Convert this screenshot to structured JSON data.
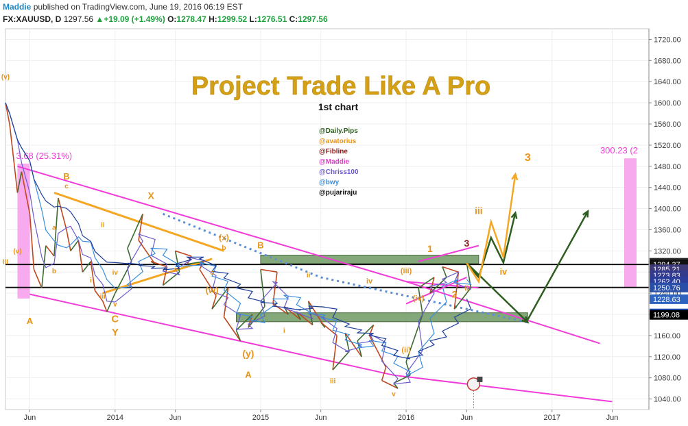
{
  "header": {
    "author": "Maddie",
    "published_text": "published on TradingView.com, June 19, 2016 06:19 EST",
    "symbol": "FX:XAUUSD, D",
    "last": "1297.56",
    "change": "+19.09 (+1.49%)",
    "open_label": "O:",
    "open": "1278.47",
    "high_label": "H:",
    "high": "1299.52",
    "low_label": "L:",
    "low": "1276.51",
    "close_label": "C:",
    "close": "1297.56"
  },
  "colors": {
    "magenta": "#f23cd8",
    "orange": "#f5a623",
    "wave_orange": "#e8951a",
    "dark_green": "#2e5e1f",
    "green_zone": "#6f9a62",
    "blue_dots": "#5b8ed6",
    "pink_box": "#f7a1ec"
  },
  "chart_data": {
    "type": "line",
    "title": "Project Trade Like A Pro",
    "subtitle": "1st chart",
    "contributors": [
      {
        "name": "@Daily.Pips",
        "color": "#2e5e1f"
      },
      {
        "name": "@avatorius",
        "color": "#e8951a"
      },
      {
        "name": "@Fibline",
        "color": "#8b1a1a"
      },
      {
        "name": "@Maddie",
        "color": "#e03cc8"
      },
      {
        "name": "@Chriss100",
        "color": "#6a5acd"
      },
      {
        "name": "@bwy",
        "color": "#3a8dde"
      },
      {
        "name": "@pujariraju",
        "color": "#111111"
      }
    ],
    "y_axis": {
      "ylim": [
        1020,
        1740
      ],
      "ticks": [
        1040,
        1080,
        1120,
        1160,
        1200,
        1240,
        1280,
        1320,
        1360,
        1400,
        1440,
        1480,
        1520,
        1560,
        1600,
        1640,
        1680,
        1720
      ],
      "tick_labels": [
        "1040.00",
        "1080.00",
        "1120.00",
        "1160.00",
        "1200.00",
        "1240.00",
        "1280.00",
        "1320.00",
        "1360.00",
        "1400.00",
        "1440.00",
        "1480.00",
        "1520.00",
        "1560.00",
        "1600.00",
        "1640.00",
        "1680.00",
        "1720.00"
      ]
    },
    "price_labels": [
      {
        "value": 1297.56,
        "text": "1297.56",
        "color": "#2a2a2a"
      },
      {
        "value": 1294.37,
        "text": "1294.37",
        "color": "#111111"
      },
      {
        "value": 1285.21,
        "text": "1285.21",
        "color": "#3f3a7a"
      },
      {
        "value": 1273.83,
        "text": "1273.83",
        "color": "#343a8c"
      },
      {
        "value": 1262.4,
        "text": "1262.40",
        "color": "#2c3e9a"
      },
      {
        "value": 1250.76,
        "text": "1250.76",
        "color": "#2a4fa8"
      },
      {
        "value": 1228.63,
        "text": "1228.63",
        "color": "#2f63c0"
      },
      {
        "value": 1201.71,
        "text": "1201.71",
        "color": "#1e4fb0"
      },
      {
        "value": 1199.08,
        "text": "1199.08",
        "color": "#000000"
      }
    ],
    "x_axis": {
      "tick_labels": [
        "Jun",
        "2014",
        "Jun",
        "2015",
        "Jun",
        "2016",
        "Jun",
        "2017",
        "Jun"
      ],
      "dates": [
        "2013-06",
        "2014-01",
        "2014-06",
        "2015-01",
        "2015-06",
        "2016-01",
        "2016-06",
        "2017-01",
        "2017-06"
      ]
    },
    "series": [
      {
        "name": "XAUUSD",
        "x": [
          "2013-04",
          "2013-04",
          "2013-05",
          "2013-05",
          "2013-06",
          "2013-06",
          "2013-07",
          "2013-07",
          "2013-08",
          "2013-08",
          "2013-09",
          "2013-09",
          "2013-10",
          "2013-10",
          "2013-11",
          "2013-11",
          "2013-12",
          "2013-12",
          "2014-01",
          "2014-02",
          "2014-02",
          "2014-03",
          "2014-03",
          "2014-04",
          "2014-04",
          "2014-05",
          "2014-05",
          "2014-06",
          "2014-06",
          "2014-07",
          "2014-07",
          "2014-08",
          "2014-08",
          "2014-09",
          "2014-09",
          "2014-10",
          "2014-10",
          "2014-11",
          "2014-11",
          "2014-12",
          "2014-12",
          "2015-01",
          "2015-01",
          "2015-02",
          "2015-02",
          "2015-03",
          "2015-03",
          "2015-04",
          "2015-04",
          "2015-05",
          "2015-05",
          "2015-06",
          "2015-06",
          "2015-07",
          "2015-07",
          "2015-08",
          "2015-08",
          "2015-09",
          "2015-09",
          "2015-10",
          "2015-10",
          "2015-11",
          "2015-11",
          "2015-12",
          "2015-12",
          "2016-01",
          "2016-01",
          "2016-02",
          "2016-02",
          "2016-03",
          "2016-03",
          "2016-04",
          "2016-04",
          "2016-05",
          "2016-05",
          "2016-06",
          "2016-06"
        ],
        "y": [
          1600,
          1560,
          1430,
          1470,
          1390,
          1285,
          1250,
          1330,
          1310,
          1420,
          1360,
          1320,
          1340,
          1280,
          1300,
          1245,
          1225,
          1205,
          1240,
          1300,
          1325,
          1390,
          1340,
          1295,
          1300,
          1290,
          1255,
          1280,
          1320,
          1310,
          1295,
          1300,
          1285,
          1235,
          1210,
          1250,
          1195,
          1150,
          1170,
          1200,
          1175,
          1215,
          1285,
          1280,
          1220,
          1200,
          1215,
          1190,
          1205,
          1180,
          1225,
          1175,
          1185,
          1160,
          1095,
          1130,
          1165,
          1120,
          1150,
          1180,
          1160,
          1100,
          1075,
          1060,
          1070,
          1085,
          1110,
          1200,
          1250,
          1270,
          1240,
          1270,
          1290,
          1280,
          1210,
          1250,
          1297
        ]
      }
    ],
    "regions": {
      "green_zones": [
        {
          "x": [
            "2015-01",
            "2016-07"
          ],
          "y": [
            1296,
            1312
          ]
        },
        {
          "x": [
            "2014-11",
            "2016-11"
          ],
          "y": [
            1186,
            1203
          ]
        }
      ],
      "pink_boxes": [
        {
          "x": [
            "2013-05",
            "2013-06"
          ],
          "y": [
            1230,
            1485
          ],
          "label": "3.68 (25.31%)"
        },
        {
          "x": [
            "2017-07",
            "2017-08"
          ],
          "y": [
            1250,
            1495
          ],
          "label": "300.23 (2"
        }
      ]
    },
    "horizontal_lines": [
      1294.37,
      1250.76
    ],
    "wave_labels": [
      "(v)",
      "iii",
      "a",
      "b",
      "c",
      "i",
      "ii",
      "iii",
      "iv",
      "v",
      "B",
      "C",
      "Y",
      "A",
      "X",
      "(x)",
      "(w)",
      "a",
      "b",
      "c",
      "(y)",
      "A",
      "B",
      "i",
      "ii",
      "iii",
      "iv",
      "v",
      "(ii)",
      "(iii)",
      "(iv)",
      "1",
      "2",
      "3",
      "ii",
      "iii",
      "iv"
    ],
    "ytype": "linear",
    "grid": true
  }
}
